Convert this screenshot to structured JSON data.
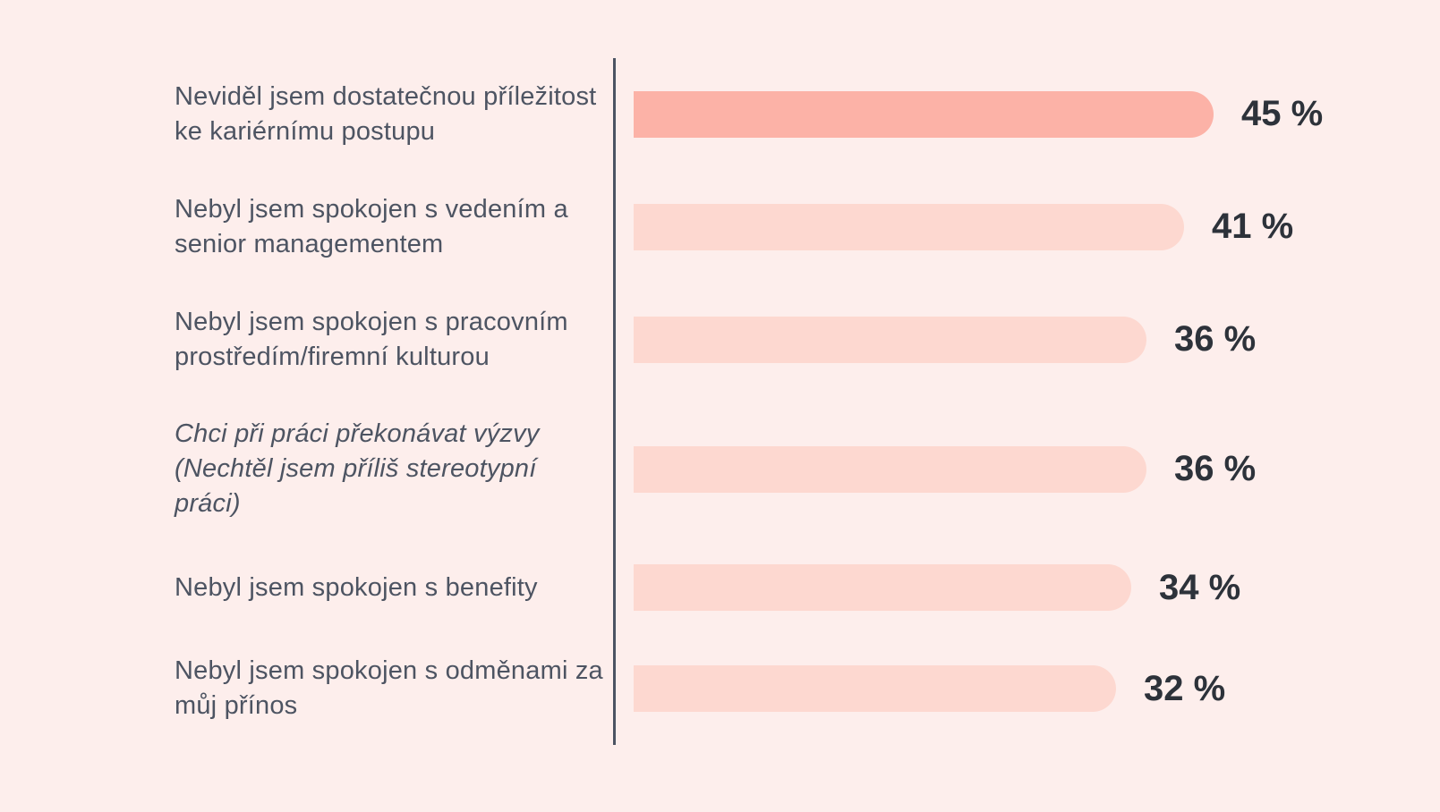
{
  "colors": {
    "background": "#fdeeec",
    "axis_line": "#4b5362",
    "bar_highlight": "#fcb2a7",
    "bar_default": "#fdd8d0",
    "label_text": "#4d5462",
    "value_text": "#2d323a"
  },
  "chart_data": {
    "type": "bar",
    "orientation": "horizontal",
    "unit": "%",
    "title": "",
    "xlabel": "",
    "ylabel": "",
    "grid": false,
    "legend": "none",
    "value_axis_visible": false,
    "baseline_axis": "vertical-line-left",
    "highlighted_index": 0,
    "categories": [
      "Neviděl jsem dostatečnou příležitost ke kariérnímu postupu",
      "Nebyl jsem spokojen s vedením a senior managementem",
      "Nebyl jsem spokojen s pracovním prostředím/firemní kulturou",
      "Chci při práci překonávat výzvy (Nechtěl jsem příliš stereotypní práci)",
      "Nebyl jsem spokojen s benefity",
      "Nebyl jsem spokojen s odměnami za můj přínos"
    ],
    "values": [
      45,
      41,
      36,
      36,
      34,
      32
    ],
    "rows": [
      {
        "label": "Neviděl jsem dostatečnou příležitost ke kariérnímu postupu",
        "value": 45,
        "value_label": "45 %",
        "highlight": true,
        "italic": false
      },
      {
        "label": "Nebyl jsem spokojen s vedením a senior managementem",
        "value": 41,
        "value_label": "41 %",
        "highlight": false,
        "italic": false
      },
      {
        "label": "Nebyl jsem spokojen s pracovním prostředím/firemní kulturou",
        "value": 36,
        "value_label": "36 %",
        "highlight": false,
        "italic": false
      },
      {
        "label": "Chci při práci překonávat výzvy (Nechtěl jsem příliš stereotypní práci)",
        "value": 36,
        "value_label": "36 %",
        "highlight": false,
        "italic": true
      },
      {
        "label": "Nebyl jsem spokojen s benefity",
        "value": 34,
        "value_label": "34 %",
        "highlight": false,
        "italic": false
      },
      {
        "label": "Nebyl jsem spokojen s odměnami za můj přínos",
        "value": 32,
        "value_label": "32 %",
        "highlight": false,
        "italic": false
      }
    ]
  }
}
